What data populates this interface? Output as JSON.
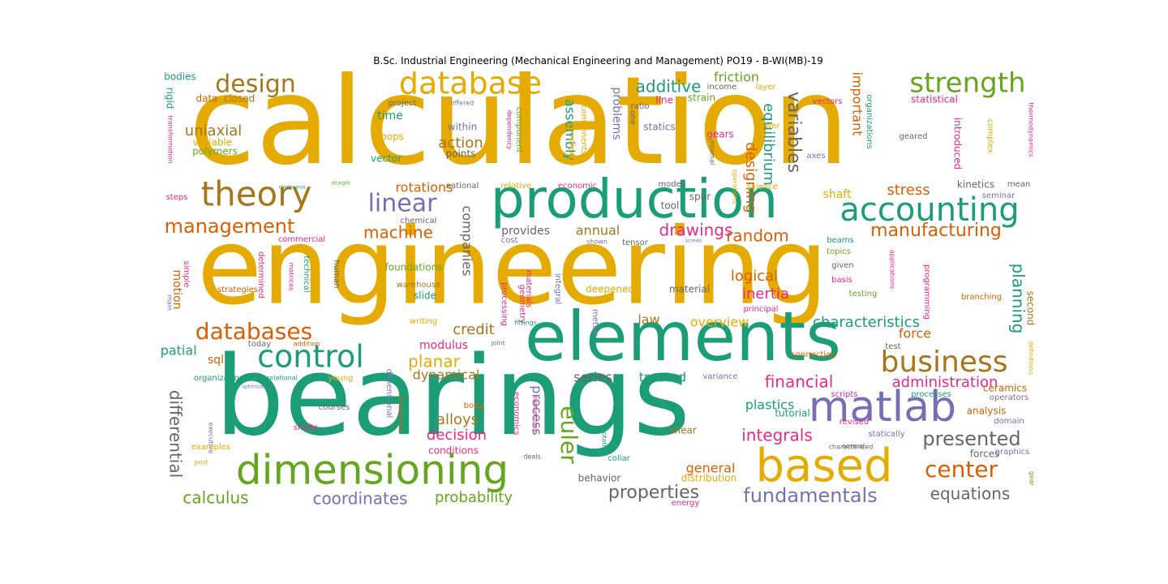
{
  "title": "B.Sc. Industrial Engineering (Mechanical Engineering and Management)  PO19 - B-WI(MB)-19",
  "colors": {
    "gold": "#e6ab02",
    "teal": "#1b9e77",
    "orange": "#d95f02",
    "purple": "#7570b3",
    "pink": "#e7298a",
    "green": "#66a61e",
    "brown": "#a6761d",
    "gray": "#666666"
  },
  "words": [
    {
      "text": "calculation",
      "color": "gold"
    },
    {
      "text": "engineering",
      "color": "gold"
    },
    {
      "text": "bearings",
      "color": "teal"
    },
    {
      "text": "elements",
      "color": "teal"
    },
    {
      "text": "production",
      "color": "teal"
    },
    {
      "text": "dimensioning",
      "color": "green"
    },
    {
      "text": "based",
      "color": "gold"
    },
    {
      "text": "matlab",
      "color": "purple"
    },
    {
      "text": "theory",
      "color": "brown"
    },
    {
      "text": "database",
      "color": "gold"
    },
    {
      "text": "accounting",
      "color": "teal"
    },
    {
      "text": "business",
      "color": "brown"
    },
    {
      "text": "control",
      "color": "teal"
    },
    {
      "text": "strength",
      "color": "green"
    },
    {
      "text": "design",
      "color": "brown"
    },
    {
      "text": "databases",
      "color": "orange"
    },
    {
      "text": "linear",
      "color": "purple"
    },
    {
      "text": "management",
      "color": "orange"
    },
    {
      "text": "center",
      "color": "orange"
    },
    {
      "text": "presented",
      "color": "gray"
    },
    {
      "text": "fundamentals",
      "color": "purple"
    },
    {
      "text": "manufacturing",
      "color": "orange"
    },
    {
      "text": "euler",
      "color": "green"
    },
    {
      "text": "properties",
      "color": "gray"
    },
    {
      "text": "equations",
      "color": "gray"
    },
    {
      "text": "calculus",
      "color": "green"
    },
    {
      "text": "coordinates",
      "color": "purple"
    },
    {
      "text": "planning",
      "color": "teal"
    },
    {
      "text": "variables",
      "color": "gray"
    },
    {
      "text": "additive",
      "color": "teal"
    },
    {
      "text": "machine",
      "color": "orange"
    },
    {
      "text": "drawings",
      "color": "pink"
    },
    {
      "text": "random",
      "color": "orange"
    },
    {
      "text": "stress",
      "color": "orange"
    },
    {
      "text": "integrals",
      "color": "pink"
    },
    {
      "text": "financial",
      "color": "pink"
    },
    {
      "text": "administration",
      "color": "pink"
    },
    {
      "text": "planar",
      "color": "gold"
    },
    {
      "text": "differential",
      "color": "gray"
    },
    {
      "text": "probability",
      "color": "green"
    },
    {
      "text": "characteristics",
      "color": "teal"
    },
    {
      "text": "decision",
      "color": "pink"
    },
    {
      "text": "alloys",
      "color": "brown"
    },
    {
      "text": "credit",
      "color": "brown"
    },
    {
      "text": "overview",
      "color": "gold"
    },
    {
      "text": "action",
      "color": "brown"
    },
    {
      "text": "equilibrium",
      "color": "teal"
    },
    {
      "text": "designing",
      "color": "orange"
    },
    {
      "text": "uniaxial",
      "color": "brown"
    },
    {
      "text": "companies",
      "color": "gray"
    },
    {
      "text": "rotations",
      "color": "orange"
    },
    {
      "text": "annual",
      "color": "brown"
    },
    {
      "text": "inertia",
      "color": "pink"
    },
    {
      "text": "logical",
      "color": "orange"
    },
    {
      "text": "plastics",
      "color": "teal"
    },
    {
      "text": "general",
      "color": "orange"
    },
    {
      "text": "force",
      "color": "orange"
    },
    {
      "text": "friction",
      "color": "green"
    },
    {
      "text": "time",
      "color": "teal"
    },
    {
      "text": "important",
      "color": "orange"
    },
    {
      "text": "problems",
      "color": "purple"
    },
    {
      "text": "assembly",
      "color": "teal"
    },
    {
      "text": "motion",
      "color": "orange"
    },
    {
      "text": "spatial",
      "color": "teal"
    },
    {
      "text": "dynamical",
      "color": "brown"
    },
    {
      "text": "modulus",
      "color": "pink"
    },
    {
      "text": "treated",
      "color": "teal"
    },
    {
      "text": "series",
      "color": "gray"
    },
    {
      "text": "process",
      "color": "purple"
    },
    {
      "text": "provides",
      "color": "gray"
    },
    {
      "text": "law",
      "color": "brown"
    },
    {
      "text": "sql",
      "color": "orange"
    },
    {
      "text": "shaft",
      "color": "gold"
    },
    {
      "text": "second",
      "color": "brown"
    },
    {
      "text": "forces",
      "color": "gray"
    },
    {
      "text": "tutorial",
      "color": "teal"
    },
    {
      "text": "analysis",
      "color": "orange"
    },
    {
      "text": "polymers",
      "color": "green"
    },
    {
      "text": "variable",
      "color": "gold"
    },
    {
      "text": "bodies",
      "color": "teal"
    },
    {
      "text": "rigid",
      "color": "teal"
    },
    {
      "text": "data",
      "color": "orange"
    },
    {
      "text": "closed",
      "color": "brown"
    },
    {
      "text": "project",
      "color": "gray"
    },
    {
      "text": "within",
      "color": "purple"
    },
    {
      "text": "points",
      "color": "gray"
    },
    {
      "text": "vector",
      "color": "teal"
    },
    {
      "text": "loops",
      "color": "gold"
    },
    {
      "text": "component",
      "color": "green"
    },
    {
      "text": "knowledge",
      "color": "gold"
    },
    {
      "text": "components",
      "color": "gold"
    },
    {
      "text": "dependency",
      "color": "pink"
    },
    {
      "text": "offered",
      "color": "purple"
    },
    {
      "text": "one",
      "color": "gray"
    },
    {
      "text": "ratio",
      "color": "gray"
    },
    {
      "text": "line",
      "color": "pink"
    },
    {
      "text": "strain",
      "color": "green"
    },
    {
      "text": "statics",
      "color": "purple"
    },
    {
      "text": "gears",
      "color": "pink"
    },
    {
      "text": "income",
      "color": "gray"
    },
    {
      "text": "layer",
      "color": "gold"
    },
    {
      "text": "power",
      "color": "gold"
    },
    {
      "text": "vectors",
      "color": "pink"
    },
    {
      "text": "organizations",
      "color": "teal"
    },
    {
      "text": "statistical",
      "color": "pink"
    },
    {
      "text": "introduced",
      "color": "pink"
    },
    {
      "text": "geared",
      "color": "gray"
    },
    {
      "text": "complex",
      "color": "gold"
    },
    {
      "text": "thermodynamics",
      "color": "pink"
    },
    {
      "text": "axes",
      "color": "purple"
    },
    {
      "text": "internal",
      "color": "gray"
    },
    {
      "text": "operations",
      "color": "gold"
    },
    {
      "text": "science",
      "color": "gold"
    },
    {
      "text": "model",
      "color": "gray"
    },
    {
      "text": "spur",
      "color": "gray"
    },
    {
      "text": "tool",
      "color": "gray"
    },
    {
      "text": "kinetics",
      "color": "gray"
    },
    {
      "text": "mean",
      "color": "gray"
    },
    {
      "text": "seminar",
      "color": "purple"
    },
    {
      "text": "transformation",
      "color": "pink"
    },
    {
      "text": "steps",
      "color": "pink"
    },
    {
      "text": "continuous",
      "color": "teal"
    },
    {
      "text": "straight",
      "color": "green"
    },
    {
      "text": "national",
      "color": "gray"
    },
    {
      "text": "relative",
      "color": "gold"
    },
    {
      "text": "economic",
      "color": "pink"
    },
    {
      "text": "chemical",
      "color": "gray"
    },
    {
      "text": "commercial",
      "color": "pink"
    },
    {
      "text": "cost",
      "color": "purple"
    },
    {
      "text": "shown",
      "color": "purple"
    },
    {
      "text": "tensor",
      "color": "gray"
    },
    {
      "text": "screws",
      "color": "purple"
    },
    {
      "text": "beams",
      "color": "teal"
    },
    {
      "text": "topics",
      "color": "green"
    },
    {
      "text": "given",
      "color": "gray"
    },
    {
      "text": "basis",
      "color": "pink"
    },
    {
      "text": "testing",
      "color": "green"
    },
    {
      "text": "branching",
      "color": "orange"
    },
    {
      "text": "applications",
      "color": "pink"
    },
    {
      "text": "programming",
      "color": "pink"
    },
    {
      "text": "simple",
      "color": "pink"
    },
    {
      "text": "strategies",
      "color": "orange"
    },
    {
      "text": "determined",
      "color": "pink"
    },
    {
      "text": "matrices",
      "color": "pink"
    },
    {
      "text": "technical",
      "color": "teal"
    },
    {
      "text": "human",
      "color": "gray"
    },
    {
      "text": "warehouse",
      "color": "brown"
    },
    {
      "text": "slide",
      "color": "teal"
    },
    {
      "text": "foundations",
      "color": "green"
    },
    {
      "text": "processing",
      "color": "pink"
    },
    {
      "text": "geometry",
      "color": "pink"
    },
    {
      "text": "materials",
      "color": "pink"
    },
    {
      "text": "integral",
      "color": "purple"
    },
    {
      "text": "deepened",
      "color": "gold"
    },
    {
      "text": "material",
      "color": "gray"
    },
    {
      "text": "principal",
      "color": "pink"
    },
    {
      "text": "main",
      "color": "purple"
    },
    {
      "text": "writing",
      "color": "gold"
    },
    {
      "text": "fittings",
      "color": "teal"
    },
    {
      "text": "metals",
      "color": "purple"
    },
    {
      "text": "addition",
      "color": "orange"
    },
    {
      "text": "today",
      "color": "gray"
    },
    {
      "text": "joint",
      "color": "purple"
    },
    {
      "text": "relational",
      "color": "teal"
    },
    {
      "text": "organization",
      "color": "teal"
    },
    {
      "text": "young",
      "color": "gold"
    },
    {
      "text": "optimization",
      "color": "purple"
    },
    {
      "text": "dimensional",
      "color": "purple"
    },
    {
      "text": "investment",
      "color": "orange"
    },
    {
      "text": "economics",
      "color": "pink"
    },
    {
      "text": "elementary",
      "color": "pink"
    },
    {
      "text": "executive",
      "color": "purple"
    },
    {
      "text": "courses",
      "color": "gray"
    },
    {
      "text": "body",
      "color": "orange"
    },
    {
      "text": "examples",
      "color": "gold"
    },
    {
      "text": "shafts",
      "color": "pink"
    },
    {
      "text": "conditions",
      "color": "pink"
    },
    {
      "text": "deals",
      "color": "gray"
    },
    {
      "text": "collar",
      "color": "teal"
    },
    {
      "text": "rotation",
      "color": "teal"
    },
    {
      "text": "shear",
      "color": "brown"
    },
    {
      "text": "behavior",
      "color": "gray"
    },
    {
      "text": "distribution",
      "color": "gold"
    },
    {
      "text": "energy",
      "color": "pink"
    },
    {
      "text": "variance",
      "color": "purple"
    },
    {
      "text": "test",
      "color": "gray"
    },
    {
      "text": "connection",
      "color": "orange"
    },
    {
      "text": "definitions",
      "color": "gold"
    },
    {
      "text": "scripts",
      "color": "pink"
    },
    {
      "text": "processes",
      "color": "teal"
    },
    {
      "text": "ceramics",
      "color": "orange"
    },
    {
      "text": "operators",
      "color": "purple"
    },
    {
      "text": "domain",
      "color": "purple"
    },
    {
      "text": "revised",
      "color": "pink"
    },
    {
      "text": "statically",
      "color": "purple"
    },
    {
      "text": "characterized",
      "color": "gray"
    },
    {
      "text": "normal",
      "color": "gray"
    },
    {
      "text": "graphics",
      "color": "purple"
    },
    {
      "text": "gear",
      "color": "green"
    },
    {
      "text": "post",
      "color": "gold"
    }
  ]
}
